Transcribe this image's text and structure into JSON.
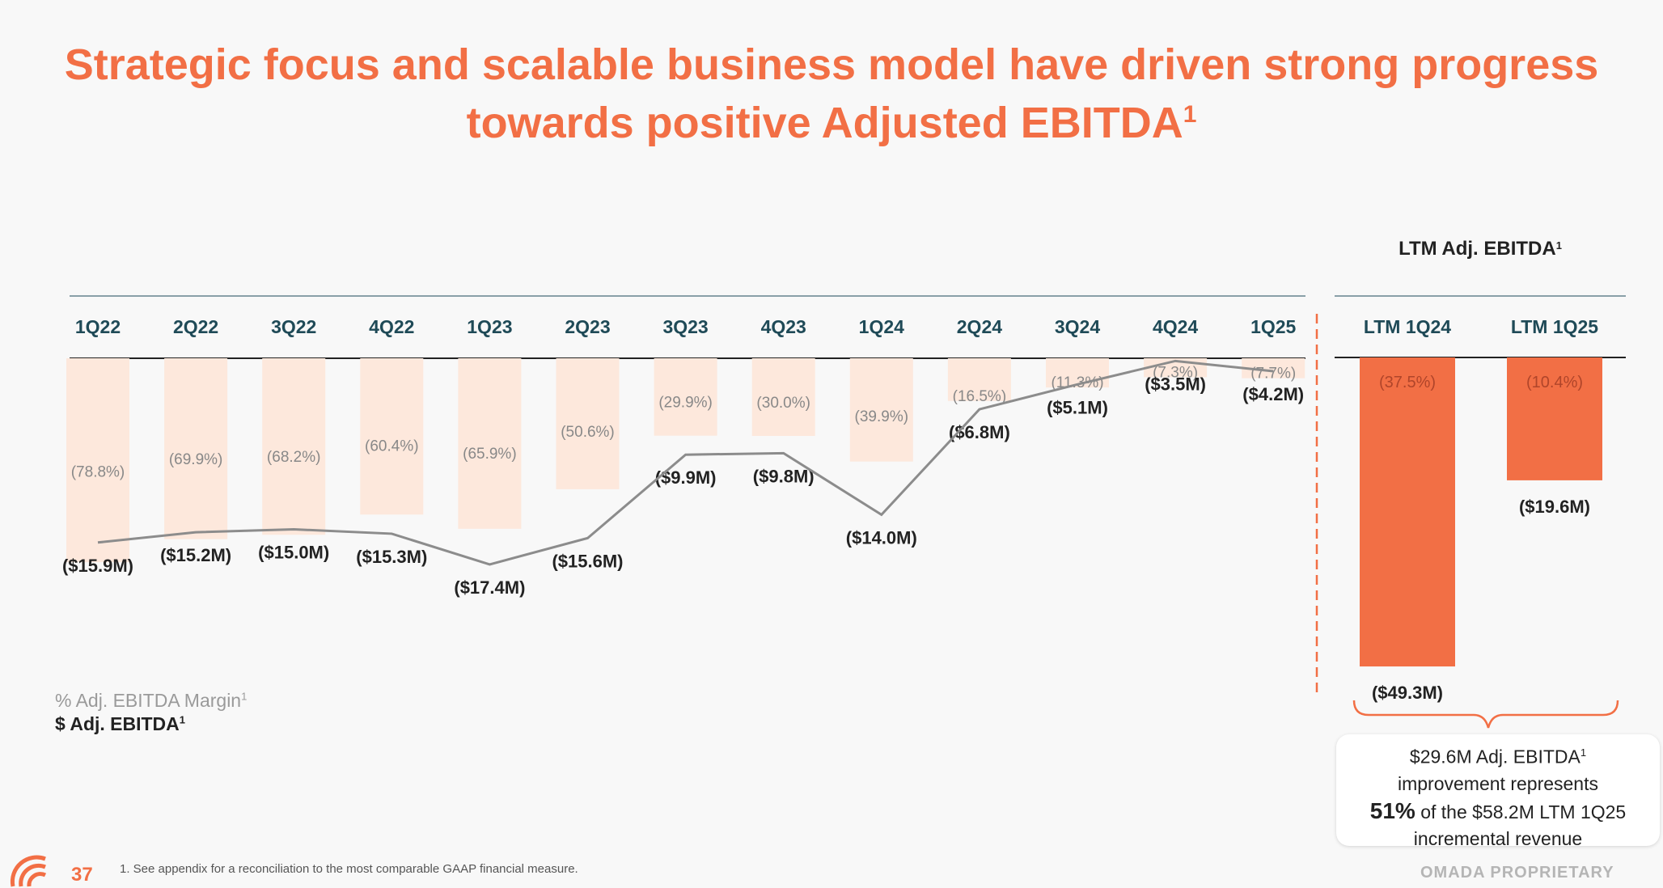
{
  "title": {
    "line1": "Strategic focus and scalable business model have driven strong progress",
    "line2": "towards positive Adjusted EBITDA",
    "sup": "1"
  },
  "chart_data": [
    {
      "type": "bar",
      "categories": [
        "1Q22",
        "2Q22",
        "3Q22",
        "4Q22",
        "1Q23",
        "2Q23",
        "3Q23",
        "4Q23",
        "1Q24",
        "2Q24",
        "3Q24",
        "4Q24",
        "1Q25"
      ],
      "series": [
        {
          "name": "$ Adj. EBITDA",
          "values": [
            -15.9,
            -15.2,
            -15.0,
            -15.3,
            -17.4,
            -15.6,
            -9.9,
            -9.8,
            -14.0,
            -6.8,
            -5.1,
            -3.5,
            -4.2
          ],
          "labels": [
            "($15.9M)",
            "($15.2M)",
            "($15.0M)",
            "($15.3M)",
            "($17.4M)",
            "($15.6M)",
            "($9.9M)",
            "($9.8M)",
            "($14.0M)",
            "($6.8M)",
            "($5.1M)",
            "($3.5M)",
            "($4.2M)"
          ]
        },
        {
          "name": "% Adj. EBITDA Margin",
          "values": [
            -78.8,
            -69.9,
            -68.2,
            -60.4,
            -65.9,
            -50.6,
            -29.9,
            -30.0,
            -39.9,
            -16.5,
            -11.3,
            -7.3,
            -7.7
          ],
          "labels": [
            "(78.8%)",
            "(69.9%)",
            "(68.2%)",
            "(60.4%)",
            "(65.9%)",
            "(50.6%)",
            "(29.9%)",
            "(30.0%)",
            "(39.9%)",
            "(16.5%)",
            "(11.3%)",
            "(7.3%)",
            "(7.7%)"
          ]
        }
      ]
    },
    {
      "type": "bar",
      "title": "LTM Adj. EBITDA",
      "title_sup": "1",
      "categories": [
        "LTM 1Q24",
        "LTM 1Q25"
      ],
      "series": [
        {
          "name": "$ Adj. EBITDA",
          "values": [
            -49.3,
            -19.6
          ],
          "labels": [
            "($49.3M)",
            "($19.6M)"
          ]
        },
        {
          "name": "% Adj. EBITDA Margin",
          "values": [
            -37.5,
            -10.4
          ],
          "labels": [
            "(37.5%)",
            "(10.4%)"
          ]
        }
      ]
    }
  ],
  "legend": {
    "margin": "% Adj. EBITDA Margin",
    "ebitda": "$ Adj. EBITDA",
    "sup": "1"
  },
  "callout": {
    "line1": "$29.6M Adj. EBITDA",
    "sup": "1",
    "line2": "improvement represents",
    "big": "51%",
    "line3": " of the $58.2M LTM 1Q25",
    "line4": "incremental revenue"
  },
  "footer": {
    "page": "37",
    "footnote": "1.    See appendix for a reconciliation to the most comparable GAAP financial measure.",
    "proprietary": "OMADA PROPRIETARY"
  },
  "colors": {
    "accent": "#f26f45",
    "bar_light": "#fde8dc",
    "bar_dark": "#f26f45",
    "line": "#8c8c8c",
    "axis_header": "#1f4a57"
  }
}
